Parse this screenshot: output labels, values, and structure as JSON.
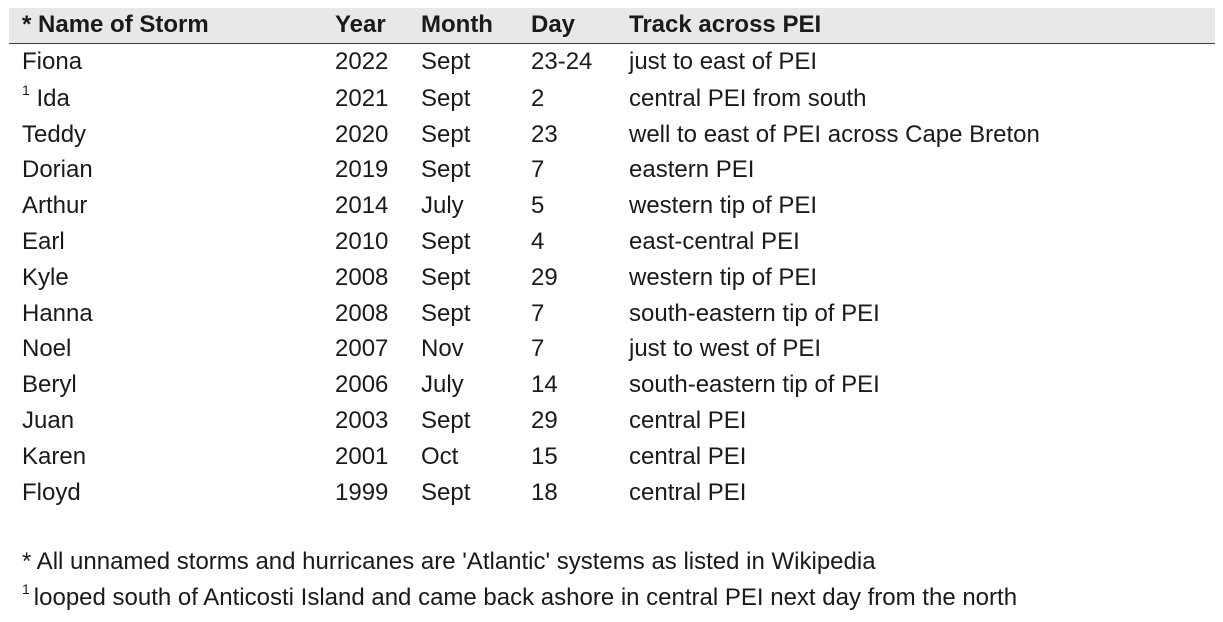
{
  "table": {
    "headers": {
      "name": "* Name of Storm",
      "year": "Year",
      "month": "Month",
      "day": "Day",
      "track": "Track across PEI"
    },
    "rows": [
      {
        "marker": "",
        "name": "Fiona",
        "year": "2022",
        "month": "Sept",
        "day": "23-24",
        "track": "just to east of PEI"
      },
      {
        "marker": "1",
        "name": "Ida",
        "year": "2021",
        "month": "Sept",
        "day": "2",
        "track": "central PEI from south"
      },
      {
        "marker": "",
        "name": "Teddy",
        "year": "2020",
        "month": "Sept",
        "day": "23",
        "track": "well to east of PEI across Cape Breton"
      },
      {
        "marker": "",
        "name": "Dorian",
        "year": "2019",
        "month": "Sept",
        "day": "7",
        "track": "eastern PEI"
      },
      {
        "marker": "",
        "name": "Arthur",
        "year": "2014",
        "month": "July",
        "day": "5",
        "track": "western tip of PEI"
      },
      {
        "marker": "",
        "name": "Earl",
        "year": "2010",
        "month": "Sept",
        "day": "4",
        "track": "east-central PEI"
      },
      {
        "marker": "",
        "name": "Kyle",
        "year": "2008",
        "month": "Sept",
        "day": "29",
        "track": "western tip of PEI"
      },
      {
        "marker": "",
        "name": "Hanna",
        "year": "2008",
        "month": "Sept",
        "day": "7",
        "track": "south-eastern tip of PEI"
      },
      {
        "marker": "",
        "name": "Noel",
        "year": "2007",
        "month": "Nov",
        "day": "7",
        "track": "just to west of PEI"
      },
      {
        "marker": "",
        "name": "Beryl",
        "year": "2006",
        "month": "July",
        "day": "14",
        "track": "south-eastern tip of PEI"
      },
      {
        "marker": "",
        "name": "Juan",
        "year": "2003",
        "month": "Sept",
        "day": "29",
        "track": "central PEI"
      },
      {
        "marker": "",
        "name": "Karen",
        "year": "2001",
        "month": "Oct",
        "day": "15",
        "track": "central PEI"
      },
      {
        "marker": "",
        "name": "Floyd",
        "year": "1999",
        "month": "Sept",
        "day": "18",
        "track": "central PEI"
      }
    ]
  },
  "notes": {
    "asterisk": "* All unnamed storms and hurricanes are 'Atlantic' systems as listed in Wikipedia",
    "footnote_marker": "1",
    "footnote_text": "looped south of Anticosti Island and came back ashore in central PEI next day from the north"
  }
}
